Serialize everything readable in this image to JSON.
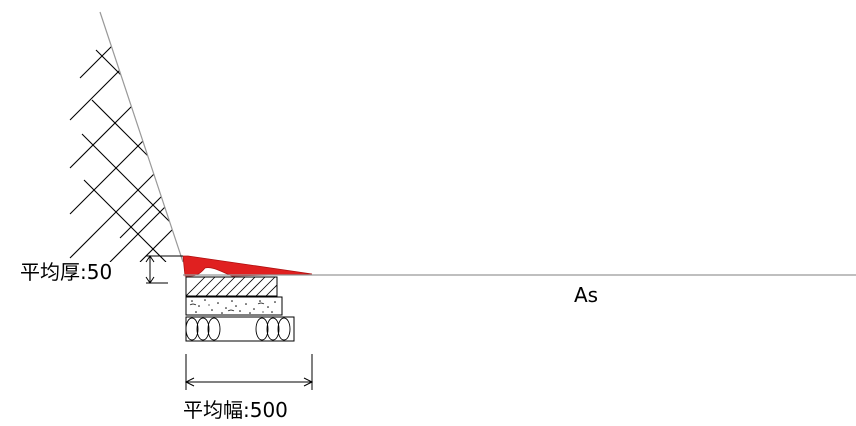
{
  "labels": {
    "avg_thickness": "平均厚:50",
    "avg_width": "平均幅:500",
    "surface": "As"
  },
  "colors": {
    "fill_red": "#e02020",
    "line": "#000000",
    "grey_line": "#999999"
  }
}
